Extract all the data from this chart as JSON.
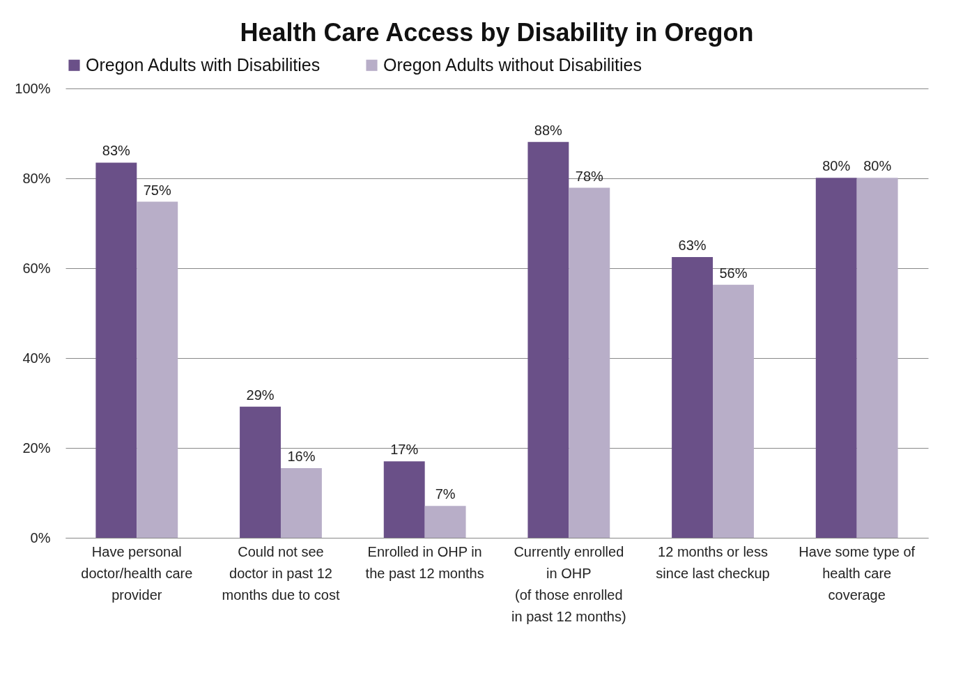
{
  "chart_data": {
    "type": "bar",
    "title": "Health Care Access by Disability in Oregon",
    "categories": [
      "Have personal\ndoctor/health care\nprovider",
      "Could not see\ndoctor in past 12\nmonths due to cost",
      "Enrolled in OHP in\nthe past 12 months",
      "Currently enrolled\nin OHP\n(of those enrolled\nin past 12 months)",
      "12 months or less\nsince last checkup",
      "Have some type of\nhealth care\ncoverage"
    ],
    "series": [
      {
        "name": "Oregon Adults with Disabilities",
        "color": "#6a5088",
        "values": [
          83.5,
          29.2,
          17,
          88.1,
          62.5,
          80.1
        ],
        "value_labels": [
          "83%",
          "29%",
          "17%",
          "88%",
          "63%",
          "80%"
        ]
      },
      {
        "name": "Oregon Adults without Disabilities",
        "color": "#b8aec8",
        "values": [
          74.8,
          15.5,
          7.1,
          77.9,
          56.3,
          80.1
        ],
        "value_labels": [
          "75%",
          "16%",
          "7%",
          "78%",
          "56%",
          "80%"
        ]
      }
    ],
    "ylim": [
      0,
      100
    ],
    "yticks": [
      {
        "value": 0,
        "label": "0%"
      },
      {
        "value": 20,
        "label": "20%"
      },
      {
        "value": 40,
        "label": "40%"
      },
      {
        "value": 60,
        "label": "60%"
      },
      {
        "value": 80,
        "label": "80%"
      },
      {
        "value": 100,
        "label": "100%"
      }
    ],
    "grid": "y",
    "legend": "top"
  }
}
